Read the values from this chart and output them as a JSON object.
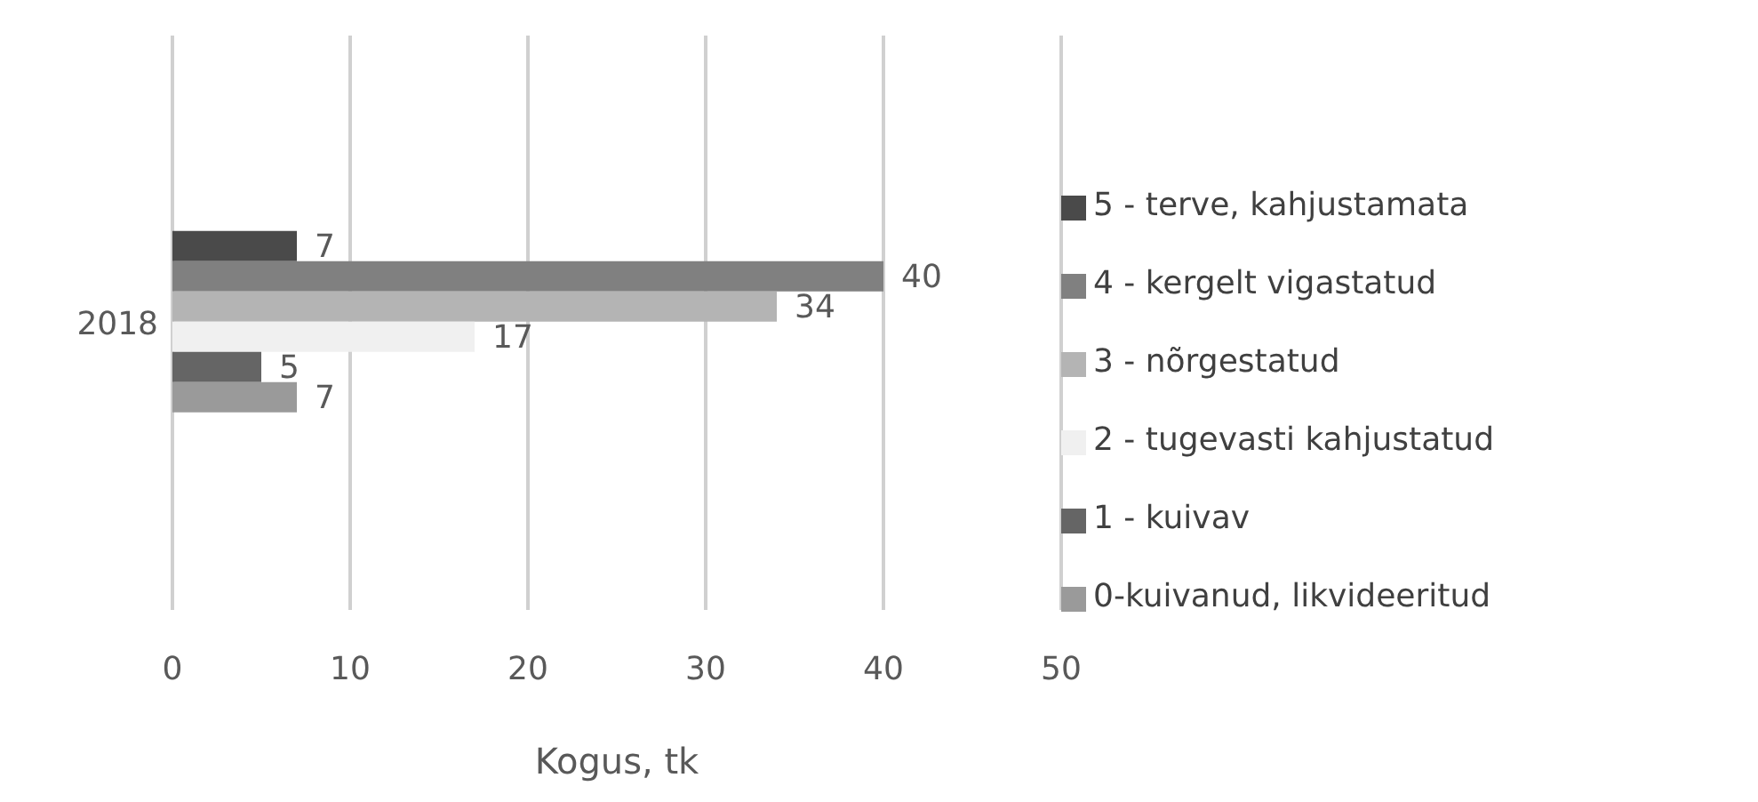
{
  "chart_data": {
    "type": "bar",
    "orientation": "horizontal",
    "categories": [
      "2018"
    ],
    "xlabel": "Kogus, tk",
    "xlim": [
      0,
      50
    ],
    "xticks": [
      0,
      10,
      20,
      30,
      40,
      50
    ],
    "grid": "x",
    "legend": "right",
    "data_labels": true,
    "series": [
      {
        "name": "5 - terve, kahjustamata",
        "color": "#4a4a4a",
        "values": [
          7
        ]
      },
      {
        "name": "4 - kergelt vigastatud",
        "color": "#808080",
        "values": [
          40
        ]
      },
      {
        "name": "3 - nõrgestatud",
        "color": "#b4b4b4",
        "values": [
          34
        ]
      },
      {
        "name": "2 - tugevasti kahjustatud",
        "color": "#f0f0f0",
        "values": [
          17
        ]
      },
      {
        "name": "1 - kuivav",
        "color": "#656565",
        "values": [
          5
        ]
      },
      {
        "name": "0-kuivanud, likvideeritud",
        "color": "#9a9a9a",
        "values": [
          7
        ]
      }
    ]
  }
}
